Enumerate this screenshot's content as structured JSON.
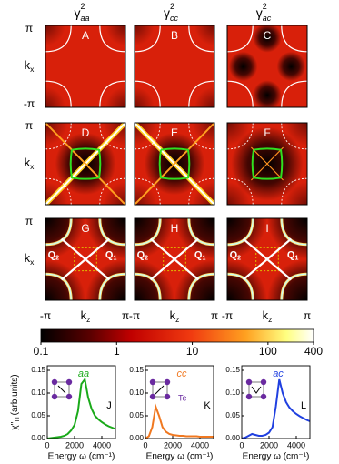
{
  "column_titles": [
    {
      "base": "γ",
      "sup": "2",
      "sub": "aa"
    },
    {
      "base": "γ",
      "sup": "2",
      "sub": "cc"
    },
    {
      "base": "γ",
      "sup": "2",
      "sub": "ac"
    }
  ],
  "maps": {
    "panels": [
      {
        "letter": "A"
      },
      {
        "letter": "B"
      },
      {
        "letter": "C"
      },
      {
        "letter": "D"
      },
      {
        "letter": "E"
      },
      {
        "letter": "F"
      },
      {
        "letter": "G"
      },
      {
        "letter": "H"
      },
      {
        "letter": "I"
      }
    ],
    "y_top": "π",
    "y_bottom": "-π",
    "y_label": {
      "text": "k",
      "sub": "x"
    },
    "x_left": "-π",
    "x_right": "π",
    "x_label": {
      "text": "k",
      "sub": "z"
    },
    "q_labels": [
      {
        "text": "Q",
        "sub": "2"
      },
      {
        "text": "Q",
        "sub": "1"
      }
    ]
  },
  "chart_data": [
    {
      "type": "colorbar",
      "log_scale": true,
      "xlim": [
        0.1,
        400
      ],
      "xticks": [
        0.1,
        1,
        10,
        100,
        400
      ]
    },
    {
      "type": "line",
      "title": "aa",
      "letter": "J",
      "color": "#1aaa1a",
      "ylabel": {
        "text": "χ''",
        "sub": "ΓΓ",
        "rest": "(arb.units)"
      },
      "xlabel": "Energy ω (cm⁻¹)",
      "xlim": [
        0,
        5000
      ],
      "xticks": [
        0,
        2000,
        4000
      ],
      "ylim": [
        0,
        0.16
      ],
      "yticks": [
        {
          "value": 0,
          "label": "0.00"
        },
        0.05,
        {
          "value": 0.1,
          "label": "0.10"
        },
        0.15
      ],
      "x": [
        0,
        250,
        500,
        750,
        1000,
        1250,
        1500,
        1750,
        2000,
        2250,
        2500,
        2750,
        3000,
        3250,
        3500,
        3750,
        4000,
        4250,
        4500,
        4750,
        5000
      ],
      "values": [
        0,
        0.001,
        0.002,
        0.003,
        0.004,
        0.006,
        0.01,
        0.018,
        0.03,
        0.06,
        0.12,
        0.13,
        0.09,
        0.065,
        0.05,
        0.042,
        0.036,
        0.031,
        0.027,
        0.024,
        0.021
      ]
    },
    {
      "type": "line",
      "title": "cc",
      "letter": "K",
      "color": "#f07820",
      "inset_label": "Te",
      "xlabel": "Energy ω (cm⁻¹)",
      "xlim": [
        0,
        5000
      ],
      "xticks": [
        0,
        2000,
        4000
      ],
      "ylim": [
        0,
        0.16
      ],
      "yticks": [
        {
          "value": 0,
          "label": "0.00"
        },
        0.05,
        {
          "value": 0.1,
          "label": "0.10"
        },
        0.15
      ],
      "x": [
        0,
        250,
        500,
        750,
        1000,
        1250,
        1500,
        1750,
        2000,
        2250,
        2500,
        2750,
        3000,
        3250,
        3500,
        3750,
        4000,
        4250,
        4500,
        4750,
        5000
      ],
      "values": [
        0,
        0.005,
        0.025,
        0.07,
        0.05,
        0.025,
        0.015,
        0.01,
        0.008,
        0.007,
        0.006,
        0.006,
        0.005,
        0.005,
        0.005,
        0.005,
        0.004,
        0.004,
        0.004,
        0.004,
        0.004
      ]
    },
    {
      "type": "line",
      "title": "ac",
      "letter": "L",
      "color": "#2040e0",
      "xlabel": "Energy ω (cm⁻¹)",
      "xlim": [
        0,
        5000
      ],
      "xticks": [
        0,
        2000,
        4000
      ],
      "ylim": [
        0,
        0.16
      ],
      "yticks": [
        {
          "value": 0,
          "label": "0.00"
        },
        0.05,
        {
          "value": 0.1,
          "label": "0.10"
        },
        0.15
      ],
      "x": [
        0,
        250,
        500,
        750,
        1000,
        1250,
        1500,
        1750,
        2000,
        2250,
        2500,
        2750,
        3000,
        3250,
        3500,
        3750,
        4000,
        4250,
        4500,
        4750,
        5000
      ],
      "values": [
        0,
        0.002,
        0.006,
        0.01,
        0.008,
        0.006,
        0.006,
        0.008,
        0.013,
        0.025,
        0.07,
        0.13,
        0.1,
        0.08,
        0.068,
        0.06,
        0.054,
        0.049,
        0.045,
        0.041,
        0.038
      ]
    }
  ]
}
